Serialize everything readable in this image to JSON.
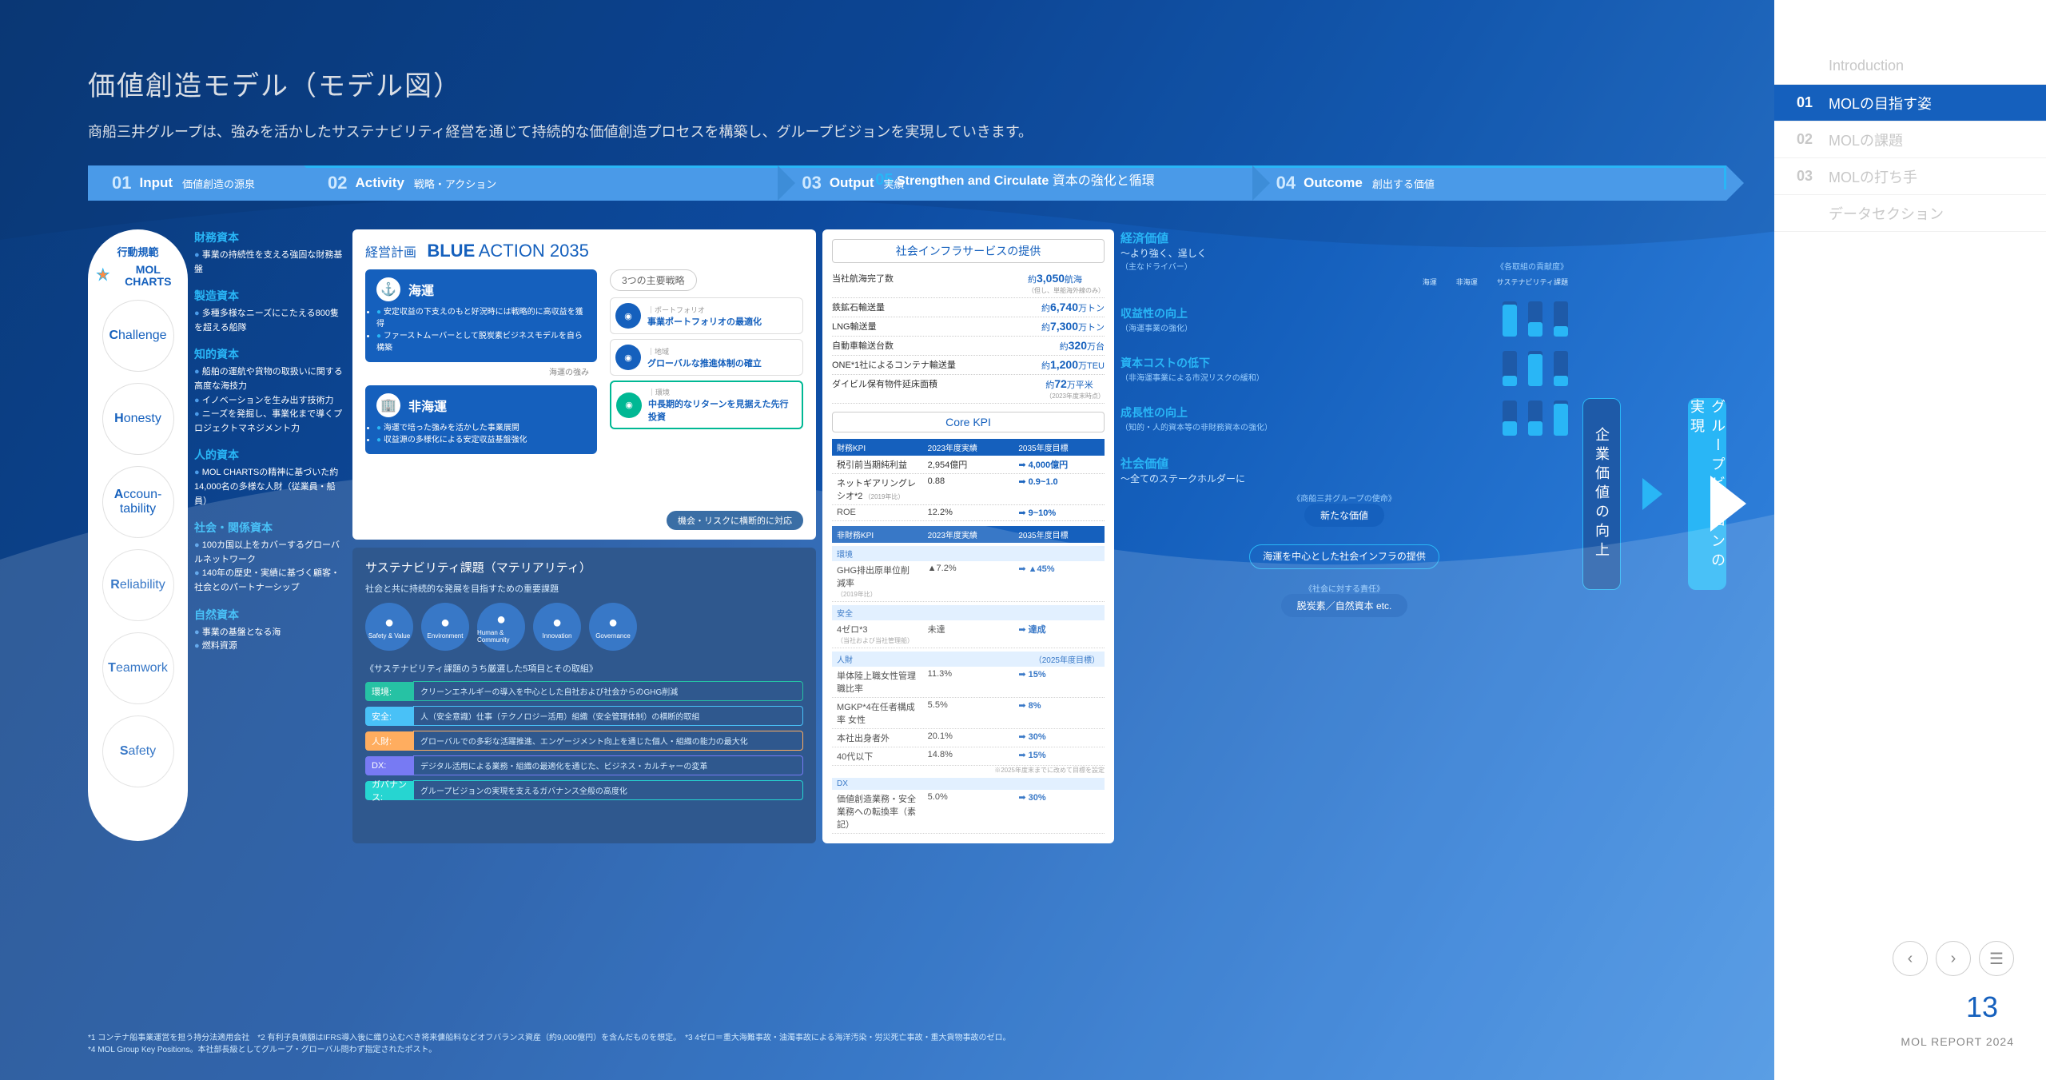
{
  "page": {
    "title": "価値創造モデル（モデル図）",
    "subtitle": "商船三井グループは、強みを活かしたサステナビリティ経営を通じて持続的な価値創造プロセスを構築し、グループビジョンを実現していきます。",
    "number": "13",
    "report": "MOL REPORT 2024"
  },
  "nav": [
    {
      "num": "",
      "label": "Introduction",
      "active": false
    },
    {
      "num": "01",
      "label": "MOLの目指す姿",
      "active": true
    },
    {
      "num": "02",
      "label": "MOLの課題",
      "active": false
    },
    {
      "num": "03",
      "label": "MOLの打ち手",
      "active": false
    },
    {
      "num": "",
      "label": "データセクション",
      "active": false
    }
  ],
  "flow": {
    "top": {
      "num": "05",
      "en": "Strengthen and Circulate",
      "ja": "資本の強化と循環"
    },
    "steps": [
      {
        "num": "01",
        "en": "Input",
        "ja": "価値創造の源泉"
      },
      {
        "num": "02",
        "en": "Activity",
        "ja": "戦略・アクション"
      },
      {
        "num": "03",
        "en": "Output",
        "ja": "実績"
      },
      {
        "num": "04",
        "en": "Outcome",
        "ja": "創出する価値"
      }
    ]
  },
  "charts": {
    "heading": "行動規範",
    "logo": "MOL CHARTS",
    "items": [
      {
        "cap": "C",
        "rest": "hallenge"
      },
      {
        "cap": "H",
        "rest": "onesty"
      },
      {
        "cap": "A",
        "rest": "ccoun-",
        "rest2": "tability"
      },
      {
        "cap": "R",
        "rest": "eliability"
      },
      {
        "cap": "T",
        "rest": "eamwork"
      },
      {
        "cap": "S",
        "rest": "afety"
      }
    ]
  },
  "capitals": [
    {
      "h": "財務資本",
      "items": [
        "事業の持続性を支える強固な財務基盤"
      ]
    },
    {
      "h": "製造資本",
      "items": [
        "多種多様なニーズにこたえる800隻を超える船隊"
      ]
    },
    {
      "h": "知的資本",
      "items": [
        "船舶の運航や貨物の取扱いに関する高度な海技力",
        "イノベーションを生み出す技術力",
        "ニーズを発掘し、事業化まで導くプロジェクトマネジメント力"
      ]
    },
    {
      "h": "人的資本",
      "items": [
        "MOL CHARTSの精神に基づいた約14,000名の多様な人財（従業員・船員）"
      ]
    },
    {
      "h": "社会・関係資本",
      "items": [
        "100カ国以上をカバーするグローバルネットワーク",
        "140年の歴史・実績に基づく顧客・社会とのパートナーシップ"
      ]
    },
    {
      "h": "自然資本",
      "items": [
        "事業の基盤となる海",
        "燃料資源"
      ]
    }
  ],
  "plan": {
    "label": "経営計画",
    "blue": "BLUE",
    "action": "ACTION 2035",
    "marine": {
      "h": "海運",
      "items": [
        "安定収益の下支えのもと好況時には戦略的に高収益を獲得",
        "ファーストムーバーとして脱炭素ビジネスモデルを自ら構築"
      ],
      "tag": "海運の強み"
    },
    "nonmarine": {
      "h": "非海運",
      "items": [
        "海運で培った強みを活かした事業展開",
        "収益源の多様化による安定収益基盤強化"
      ]
    },
    "stratLabel": "3つの主要戦略",
    "strats": [
      {
        "tag": "ポートフォリオ",
        "title": "事業ポートフォリオの最適化",
        "green": false
      },
      {
        "tag": "地域",
        "title": "グローバルな推進体制の確立",
        "green": false
      },
      {
        "tag": "環境",
        "title": "中長期的なリターンを見据えた先行投資",
        "green": true
      }
    ],
    "risk": "機会・リスクに横断的に対応"
  },
  "sus": {
    "h": "サステナビリティ課題（マテリアリティ）",
    "sub": "社会と共に持続的な発展を目指すための重要課題",
    "icons": [
      "Safety & Value",
      "Environment",
      "Human & Community",
      "Innovation",
      "Governance"
    ],
    "legend": "《サステナビリティ課題のうち厳選した5項目とその取組》",
    "bars": [
      {
        "label": "環境",
        "color": "#00b894",
        "txt": "クリーンエネルギーの導入を中心とした自社および社会からのGHG削減"
      },
      {
        "label": "安全",
        "color": "#29b6f6",
        "txt": "人（安全意識）仕事（テクノロジー活用）組織（安全管理体制）の横断的取組"
      },
      {
        "label": "人財",
        "color": "#ff9f43",
        "txt": "グローバルでの多彩な活躍推進、エンゲージメント向上を通じた個人・組織の能力の最大化"
      },
      {
        "label": "DX",
        "color": "#5f63f2",
        "txt": "デジタル活用による業務・組織の最適化を通じた、ビジネス・カルチャーの変革"
      },
      {
        "label": "ガバナンス",
        "color": "#00cec9",
        "txt": "グループビジョンの実現を支えるガバナンス全般の高度化"
      }
    ]
  },
  "output": {
    "h1": "社会インフラサービスの提供",
    "rows1": [
      {
        "l": "当社航海完了数",
        "v": "約3,050航海",
        "note": "（但し、単船海外線のみ）"
      },
      {
        "l": "鉄鉱石輸送量",
        "v": "約6,740万トン"
      },
      {
        "l": "LNG輸送量",
        "v": "約7,300万トン"
      },
      {
        "l": "自動車輸送台数",
        "v": "約320万台"
      },
      {
        "l": "ONE*1社によるコンテナ輸送量",
        "v": "約1,200万TEU"
      },
      {
        "l": "ダイビル保有物件延床面積",
        "v": "約72万平米",
        "note": "（2023年度末時点）"
      }
    ],
    "h2": "Core KPI",
    "finH": {
      "l": "財務KPI",
      "c1": "2023年度実績",
      "c2": "2035年度目標"
    },
    "fin": [
      {
        "l": "税引前当期純利益",
        "c1": "2,954億円",
        "c2": "4,000億円"
      },
      {
        "l": "ネットギアリングレシオ*2",
        "note": "（2019年比）",
        "c1": "0.88",
        "c2": "0.9~1.0"
      },
      {
        "l": "ROE",
        "c1": "12.2%",
        "c2": "9~10%"
      }
    ],
    "nonfinH": {
      "l": "非財務KPI",
      "c1": "2023年度実績",
      "c2": "2035年度目標"
    },
    "secs": [
      {
        "h": "環境",
        "rows": [
          {
            "l": "GHG排出原単位削減率",
            "note": "（2019年比）",
            "c1": "▲7.2%",
            "c2": "▲45%"
          }
        ]
      },
      {
        "h": "安全",
        "rows": [
          {
            "l": "4ゼロ*3",
            "note": "（当社および当社管理船）",
            "c1": "未達",
            "c2": "達成"
          }
        ]
      },
      {
        "h": "人財",
        "note": "（2025年度目標）",
        "rows": [
          {
            "l": "単体陸上職女性管理職比率",
            "c1": "11.3%",
            "c2": "15%"
          },
          {
            "l": "MGKP*4在任者構成率 女性",
            "c1": "5.5%",
            "c2": "8%"
          },
          {
            "l": "本社出身者外",
            "c1": "20.1%",
            "c2": "30%"
          },
          {
            "l": "40代以下",
            "c1": "14.8%",
            "c2": "15%"
          }
        ],
        "foot": "※2025年度末までに改めて目標を設定"
      },
      {
        "h": "DX",
        "rows": [
          {
            "l": "価値創造業務・安全業務への転換率（素記）",
            "c1": "5.0%",
            "c2": "30%"
          }
        ]
      }
    ]
  },
  "outcome": {
    "econH": "経済価値",
    "econSub": "～より強く、逞しく",
    "driverLabel": "（主なドライバー）",
    "contribLabel": "《各取組の貢献度》",
    "gcols": [
      "海運",
      "非海運",
      "サステナビリティ課題"
    ],
    "items": [
      {
        "h": "収益性の向上",
        "sub": "（海運事業の強化）",
        "g": [
          90,
          40,
          30
        ]
      },
      {
        "h": "資本コストの低下",
        "sub": "（非海運事業による市況リスクの緩和）",
        "g": [
          30,
          90,
          30
        ]
      },
      {
        "h": "成長性の向上",
        "sub": "（知的・人的資本等の非財務資本の強化）",
        "g": [
          40,
          40,
          90
        ]
      }
    ],
    "socH": "社会価値",
    "socSub": "～全てのステークホルダーに",
    "mission": "《商船三井グループの使命》",
    "tags": [
      "新たな価値",
      "海運を中心とした社会インフラの提供"
    ],
    "resp": "《社会に対する責任》",
    "respTag": "脱炭素／自然資本 etc.",
    "vert1": "企業価値の向上",
    "vert2": "グループビジョンの実現"
  },
  "footnotes": "*1 コンテナ船事業運営を担う持分法適用会社　*2 有利子負債額はIFRS導入後に織り込むべき将来傭船料などオフバランス資産（約9,000億円）を含んだものを想定。　*3 4ゼロ＝重大海難事故・油濁事故による海洋汚染・労災死亡事故・重大貨物事故のゼロ。\n*4 MOL Group Key Positions。本社部長級としてグループ・グローバル問わず指定されたポスト。"
}
